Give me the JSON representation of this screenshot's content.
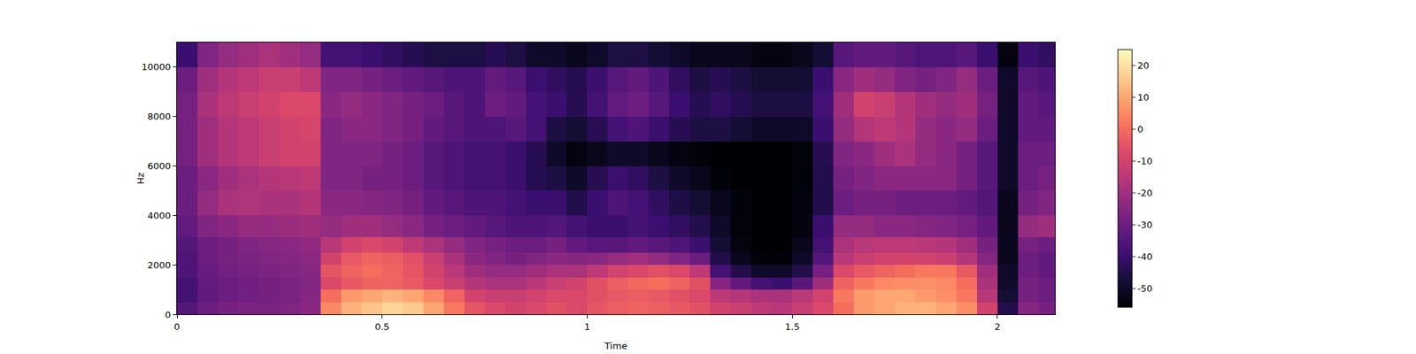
{
  "chart_data": {
    "type": "heatmap",
    "x_label": "Time",
    "y_label": "Hz",
    "grid": false,
    "xlim": [
      0,
      2.14
    ],
    "ylim": [
      0,
      11000
    ],
    "xticks": [
      0,
      0.5,
      1,
      1.5,
      2
    ],
    "yticks": [
      0,
      2000,
      4000,
      6000,
      8000,
      10000
    ],
    "x": [
      0.025,
      0.075,
      0.125,
      0.175,
      0.225,
      0.275,
      0.325,
      0.375,
      0.425,
      0.475,
      0.525,
      0.575,
      0.625,
      0.675,
      0.725,
      0.775,
      0.825,
      0.875,
      0.925,
      0.975,
      1.025,
      1.075,
      1.125,
      1.175,
      1.225,
      1.275,
      1.325,
      1.375,
      1.425,
      1.475,
      1.525,
      1.575,
      1.625,
      1.675,
      1.725,
      1.775,
      1.825,
      1.875,
      1.925,
      1.975,
      2.025,
      2.075,
      2.125
    ],
    "y": [
      250,
      750,
      1250,
      1750,
      2250,
      2750,
      3500,
      4500,
      5500,
      6500,
      7500,
      8500,
      9500,
      10500
    ],
    "z": [
      [
        -35,
        -30,
        -28,
        -27,
        -27,
        -26,
        -24,
        5,
        12,
        15,
        18,
        16,
        10,
        2,
        -5,
        -8,
        -10,
        -8,
        -6,
        -8,
        -5,
        -3,
        -2,
        -3,
        -4,
        -6,
        -10,
        -12,
        -14,
        -15,
        -12,
        -8,
        0,
        8,
        10,
        12,
        12,
        10,
        6,
        -10,
        -45,
        -25,
        -28
      ],
      [
        -38,
        -32,
        -30,
        -29,
        -28,
        -27,
        -25,
        0,
        8,
        10,
        12,
        10,
        5,
        -2,
        -10,
        -12,
        -12,
        -10,
        -8,
        -8,
        -6,
        -4,
        -3,
        -4,
        -6,
        -8,
        -14,
        -16,
        -18,
        -18,
        -15,
        -10,
        2,
        8,
        10,
        10,
        8,
        6,
        2,
        -15,
        -48,
        -28,
        -30
      ],
      [
        -38,
        -32,
        -30,
        -29,
        -28,
        -27,
        -26,
        -8,
        -4,
        -2,
        -2,
        -4,
        -8,
        -12,
        -16,
        -18,
        -18,
        -15,
        -12,
        -10,
        -6,
        -3,
        -1,
        0,
        -2,
        -6,
        -25,
        -32,
        -38,
        -40,
        -34,
        -20,
        -2,
        2,
        5,
        6,
        6,
        5,
        0,
        -18,
        -50,
        -28,
        -30
      ],
      [
        -36,
        -31,
        -29,
        -28,
        -27,
        -26,
        -25,
        -5,
        -2,
        0,
        -2,
        -5,
        -10,
        -15,
        -20,
        -22,
        -22,
        -20,
        -18,
        -18,
        -14,
        -10,
        -8,
        -6,
        -8,
        -14,
        -38,
        -45,
        -50,
        -50,
        -45,
        -28,
        -8,
        -4,
        -2,
        0,
        2,
        2,
        -4,
        -20,
        -50,
        -30,
        -32
      ],
      [
        -36,
        -30,
        -28,
        -27,
        -26,
        -25,
        -24,
        -10,
        -4,
        -2,
        -3,
        -6,
        -12,
        -18,
        -24,
        -26,
        -28,
        -26,
        -24,
        -25,
        -24,
        -22,
        -20,
        -22,
        -26,
        -30,
        -45,
        -52,
        -55,
        -55,
        -50,
        -35,
        -15,
        -12,
        -10,
        -10,
        -10,
        -12,
        -16,
        -25,
        -52,
        -30,
        -32
      ],
      [
        -35,
        -30,
        -28,
        -26,
        -25,
        -24,
        -23,
        -15,
        -10,
        -8,
        -10,
        -14,
        -18,
        -22,
        -26,
        -28,
        -30,
        -30,
        -28,
        -32,
        -34,
        -34,
        -32,
        -34,
        -36,
        -40,
        -48,
        -54,
        -56,
        -56,
        -52,
        -38,
        -18,
        -15,
        -14,
        -14,
        -15,
        -16,
        -20,
        -28,
        -52,
        -28,
        -30
      ],
      [
        -32,
        -26,
        -24,
        -22,
        -22,
        -21,
        -20,
        -22,
        -20,
        -20,
        -22,
        -24,
        -28,
        -30,
        -32,
        -34,
        -36,
        -36,
        -35,
        -38,
        -40,
        -40,
        -38,
        -40,
        -42,
        -45,
        -50,
        -55,
        -56,
        -56,
        -54,
        -40,
        -22,
        -22,
        -24,
        -24,
        -25,
        -26,
        -28,
        -32,
        -52,
        -22,
        -20
      ],
      [
        -30,
        -22,
        -18,
        -17,
        -18,
        -18,
        -16,
        -24,
        -24,
        -25,
        -26,
        -28,
        -32,
        -34,
        -36,
        -36,
        -38,
        -40,
        -40,
        -45,
        -40,
        -36,
        -38,
        -42,
        -46,
        -48,
        -52,
        -55,
        -56,
        -56,
        -54,
        -45,
        -30,
        -28,
        -28,
        -30,
        -30,
        -30,
        -32,
        -35,
        -52,
        -28,
        -26
      ],
      [
        -30,
        -24,
        -20,
        -18,
        -16,
        -15,
        -14,
        -26,
        -26,
        -28,
        -28,
        -30,
        -34,
        -36,
        -38,
        -38,
        -40,
        -44,
        -46,
        -50,
        -44,
        -40,
        -42,
        -46,
        -50,
        -52,
        -55,
        -56,
        -56,
        -56,
        -55,
        -45,
        -28,
        -26,
        -24,
        -24,
        -24,
        -24,
        -28,
        -34,
        -50,
        -30,
        -28
      ],
      [
        -28,
        -20,
        -16,
        -14,
        -12,
        -10,
        -10,
        -26,
        -26,
        -26,
        -28,
        -30,
        -34,
        -36,
        -38,
        -38,
        -40,
        -44,
        -50,
        -54,
        -52,
        -50,
        -50,
        -52,
        -54,
        -55,
        -56,
        -56,
        -56,
        -56,
        -55,
        -44,
        -26,
        -24,
        -20,
        -18,
        -22,
        -24,
        -28,
        -34,
        -50,
        -30,
        -30
      ],
      [
        -28,
        -20,
        -16,
        -14,
        -12,
        -10,
        -9,
        -26,
        -24,
        -24,
        -26,
        -28,
        -32,
        -34,
        -36,
        -36,
        -34,
        -38,
        -46,
        -48,
        -44,
        -38,
        -36,
        -40,
        -44,
        -46,
        -46,
        -48,
        -50,
        -50,
        -50,
        -40,
        -22,
        -16,
        -14,
        -16,
        -22,
        -24,
        -22,
        -30,
        -50,
        -32,
        -32
      ],
      [
        -28,
        -18,
        -14,
        -12,
        -10,
        -8,
        -8,
        -24,
        -22,
        -24,
        -26,
        -28,
        -30,
        -34,
        -36,
        -30,
        -32,
        -38,
        -40,
        -44,
        -38,
        -32,
        -30,
        -34,
        -40,
        -44,
        -42,
        -44,
        -46,
        -46,
        -46,
        -38,
        -20,
        -10,
        -12,
        -16,
        -20,
        -22,
        -20,
        -28,
        -50,
        -32,
        -34
      ],
      [
        -30,
        -20,
        -16,
        -14,
        -12,
        -12,
        -14,
        -26,
        -26,
        -28,
        -30,
        -32,
        -34,
        -36,
        -36,
        -32,
        -34,
        -40,
        -42,
        -44,
        -40,
        -34,
        -32,
        -36,
        -42,
        -46,
        -44,
        -46,
        -48,
        -48,
        -48,
        -40,
        -24,
        -20,
        -22,
        -26,
        -28,
        -26,
        -22,
        -30,
        -50,
        -34,
        -36
      ],
      [
        -40,
        -26,
        -22,
        -20,
        -18,
        -20,
        -22,
        -38,
        -38,
        -40,
        -42,
        -44,
        -46,
        -46,
        -46,
        -44,
        -46,
        -50,
        -50,
        -52,
        -50,
        -46,
        -46,
        -48,
        -50,
        -52,
        -52,
        -52,
        -54,
        -54,
        -52,
        -48,
        -34,
        -32,
        -32,
        -34,
        -36,
        -36,
        -34,
        -40,
        -54,
        -40,
        -42
      ]
    ],
    "colorbar": {
      "range": [
        -56,
        25
      ],
      "ticks": [
        -50,
        -40,
        -30,
        -20,
        -10,
        0,
        10,
        20
      ]
    }
  }
}
